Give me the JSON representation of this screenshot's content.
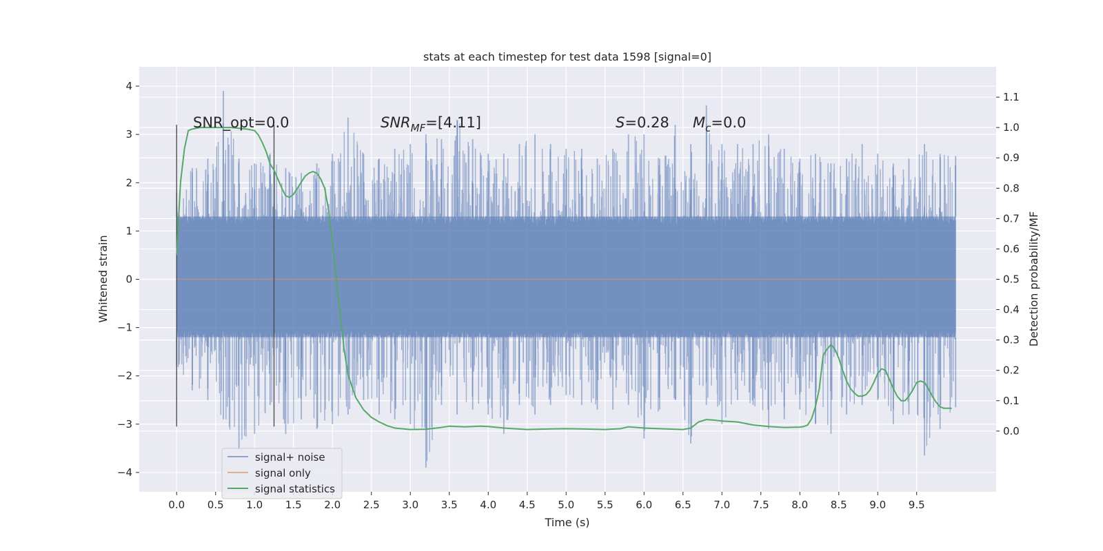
{
  "chart_data": {
    "type": "line",
    "title": "stats at each timestep for test data 1598 [signal=0]",
    "xlabel": "Time (s)",
    "ylabel": "Whitened strain",
    "y2label": "Detection probability/MF",
    "xlim": [
      -0.48,
      10.52
    ],
    "ylim": [
      -4.4,
      4.4
    ],
    "y2lim": [
      -0.2,
      1.2
    ],
    "xticks": [
      0.0,
      0.5,
      1.0,
      1.5,
      2.0,
      2.5,
      3.0,
      3.5,
      4.0,
      4.5,
      5.0,
      5.5,
      6.0,
      6.5,
      7.0,
      7.5,
      8.0,
      8.5,
      9.0,
      9.5
    ],
    "xtick_labels": [
      "0.0",
      "0.5",
      "1.0",
      "1.5",
      "2.0",
      "2.5",
      "3.0",
      "3.5",
      "4.0",
      "4.5",
      "5.0",
      "5.5",
      "6.0",
      "6.5",
      "7.0",
      "7.5",
      "8.0",
      "8.5",
      "9.0",
      "9.5"
    ],
    "yticks": [
      -4,
      -3,
      -2,
      -1,
      0,
      1,
      2,
      3,
      4
    ],
    "ytick_labels": [
      "−4",
      "−3",
      "−2",
      "−1",
      "0",
      "1",
      "2",
      "3",
      "4"
    ],
    "y2ticks": [
      0.0,
      0.1,
      0.2,
      0.3,
      0.4,
      0.5,
      0.6,
      0.7,
      0.8,
      0.9,
      1.0,
      1.1
    ],
    "y2tick_labels": [
      "0.0",
      "0.1",
      "0.2",
      "0.3",
      "0.4",
      "0.5",
      "0.6",
      "0.7",
      "0.8",
      "0.9",
      "1.0",
      "1.1"
    ],
    "legend_position": "lower-left",
    "grid": true,
    "annotations": {
      "snr_opt": "SNR_opt=0.0",
      "snr_mf_main": "SNR",
      "snr_mf_sub": "MF",
      "snr_mf_value": "=[4.11]",
      "s_main": "S",
      "s_value": "=0.28",
      "mc_main": "M",
      "mc_sub": "c",
      "mc_value": "=0.0"
    },
    "vlines": [
      0.0,
      1.25
    ],
    "series": [
      {
        "name": "signal+ noise",
        "color": "#4c72b0",
        "axis": "left",
        "description": "whitened noise, band approx -1.2 to 1.3 with peaks up to 4.05 and dips to -3.9",
        "envelope_upper": [
          1.8,
          2.3,
          2.5,
          3.9,
          2.5,
          2.4,
          2.6,
          2.3,
          2.2,
          2.4,
          2.6,
          3.35,
          2.6,
          2.5,
          2.7,
          2.8,
          3.0,
          2.9,
          3.3,
          2.9,
          2.6,
          2.6,
          2.8,
          3.0,
          2.8,
          2.7,
          2.7,
          2.5,
          2.7,
          3.0,
          3.0,
          2.5,
          3.2,
          2.8,
          3.6,
          2.8,
          2.8,
          2.8,
          3.0,
          2.7,
          2.5,
          2.6,
          2.4,
          2.5,
          2.8,
          2.6,
          2.4,
          2.5,
          2.8,
          2.6,
          2.55
        ],
        "envelope_lower": [
          -1.8,
          -2.3,
          -2.5,
          -2.9,
          -3.5,
          -3.2,
          -2.6,
          -3.2,
          -2.9,
          -3.1,
          -3.0,
          -2.8,
          -2.5,
          -2.8,
          -2.9,
          -3.0,
          -3.9,
          -2.6,
          -2.8,
          -2.7,
          -2.8,
          -3.2,
          -2.6,
          -2.8,
          -2.6,
          -2.4,
          -2.6,
          -2.7,
          -2.7,
          -2.6,
          -3.3,
          -2.7,
          -2.5,
          -3.4,
          -2.6,
          -3.0,
          -2.5,
          -2.6,
          -3.1,
          -2.9,
          -2.7,
          -3.0,
          -3.2,
          -2.8,
          -2.6,
          -2.5,
          -3.0,
          -2.8,
          -3.65,
          -3.1,
          -2.65
        ],
        "band": [
          -1.2,
          1.3
        ]
      },
      {
        "name": "signal only",
        "color": "#dd8452",
        "axis": "left",
        "x": [
          0.0,
          10.0
        ],
        "y": [
          0.0,
          0.0
        ]
      },
      {
        "name": "signal statistics",
        "color": "#55a868",
        "axis": "right",
        "x": [
          0.0,
          0.05,
          0.1,
          0.15,
          0.2,
          0.3,
          0.5,
          0.7,
          0.9,
          1.0,
          1.05,
          1.1,
          1.15,
          1.2,
          1.25,
          1.3,
          1.35,
          1.4,
          1.45,
          1.5,
          1.55,
          1.6,
          1.65,
          1.7,
          1.75,
          1.8,
          1.85,
          1.9,
          1.95,
          2.0,
          2.05,
          2.1,
          2.15,
          2.2,
          2.3,
          2.4,
          2.5,
          2.6,
          2.7,
          2.8,
          3.0,
          3.2,
          3.4,
          3.5,
          3.7,
          3.9,
          4.0,
          4.2,
          4.5,
          4.8,
          5.0,
          5.2,
          5.5,
          5.7,
          5.8,
          6.0,
          6.2,
          6.4,
          6.5,
          6.6,
          6.7,
          6.8,
          6.9,
          7.0,
          7.2,
          7.4,
          7.6,
          7.8,
          8.0,
          8.05,
          8.1,
          8.15,
          8.2,
          8.25,
          8.3,
          8.35,
          8.4,
          8.45,
          8.5,
          8.55,
          8.6,
          8.65,
          8.7,
          8.75,
          8.8,
          8.85,
          8.9,
          8.95,
          9.0,
          9.05,
          9.1,
          9.15,
          9.2,
          9.25,
          9.3,
          9.35,
          9.4,
          9.45,
          9.5,
          9.55,
          9.6,
          9.65,
          9.7,
          9.75,
          9.8,
          9.85,
          9.9,
          9.95
        ],
        "y": [
          0.58,
          0.82,
          0.93,
          0.99,
          0.995,
          1.0,
          1.0,
          1.0,
          0.995,
          0.99,
          0.975,
          0.95,
          0.92,
          0.88,
          0.86,
          0.83,
          0.8,
          0.775,
          0.77,
          0.78,
          0.8,
          0.82,
          0.84,
          0.85,
          0.855,
          0.85,
          0.83,
          0.8,
          0.73,
          0.62,
          0.5,
          0.38,
          0.27,
          0.185,
          0.11,
          0.07,
          0.045,
          0.03,
          0.018,
          0.01,
          0.005,
          0.006,
          0.012,
          0.016,
          0.014,
          0.016,
          0.015,
          0.01,
          0.005,
          0.007,
          0.008,
          0.007,
          0.005,
          0.008,
          0.014,
          0.01,
          0.008,
          0.006,
          0.005,
          0.01,
          0.03,
          0.038,
          0.036,
          0.033,
          0.03,
          0.02,
          0.015,
          0.012,
          0.013,
          0.015,
          0.02,
          0.04,
          0.08,
          0.14,
          0.25,
          0.27,
          0.285,
          0.27,
          0.24,
          0.2,
          0.165,
          0.14,
          0.125,
          0.115,
          0.115,
          0.12,
          0.135,
          0.16,
          0.19,
          0.205,
          0.2,
          0.17,
          0.14,
          0.115,
          0.1,
          0.1,
          0.115,
          0.135,
          0.16,
          0.165,
          0.16,
          0.14,
          0.115,
          0.095,
          0.08,
          0.075,
          0.075,
          0.075
        ]
      }
    ]
  }
}
